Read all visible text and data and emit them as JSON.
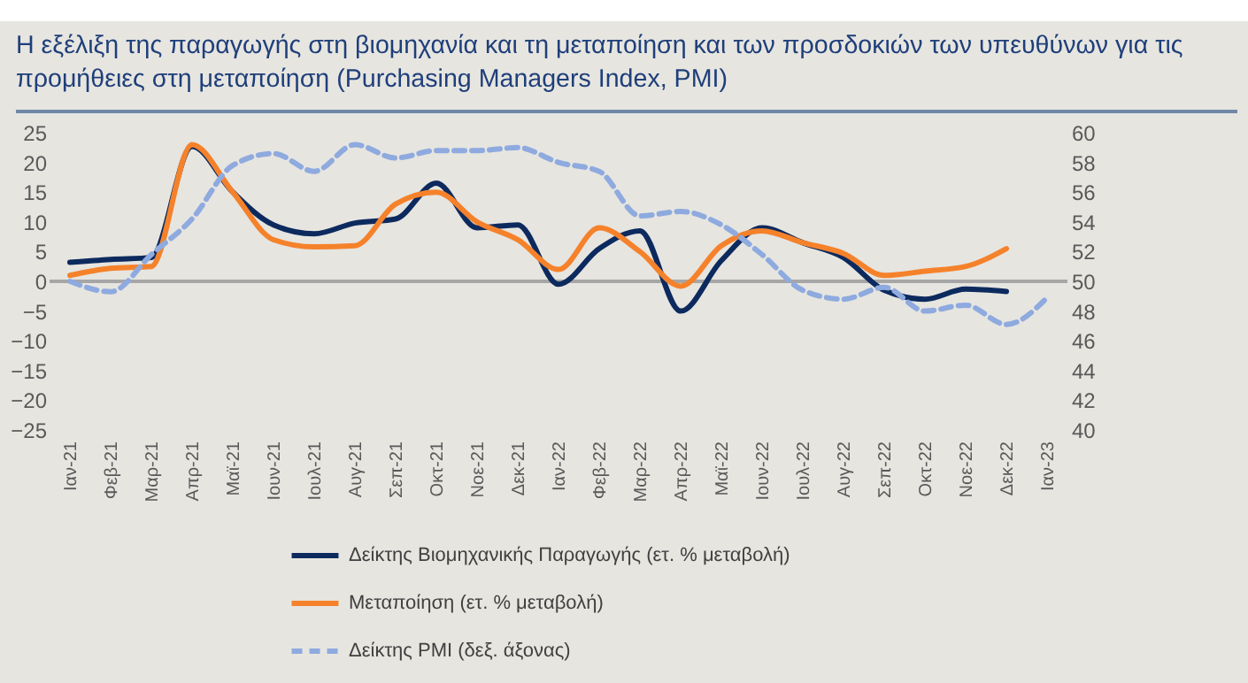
{
  "chart_data": {
    "type": "line",
    "title": "Η εξέλιξη της παραγωγής στη βιομηχανία και τη μεταποίηση και των προσδοκιών των υπευθύνων για τις προμήθειες στη μεταποίηση (Purchasing Managers Index, PMI)",
    "categories": [
      "Ιαν-21",
      "Φεβ-21",
      "Μαρ-21",
      "Απρ-21",
      "Μαϊ-21",
      "Ιουν-21",
      "Ιουλ-21",
      "Αυγ-21",
      "Σεπ-21",
      "Οκτ-21",
      "Νοε-21",
      "Δεκ-21",
      "Ιαν-22",
      "Φεβ-22",
      "Μαρ-22",
      "Απρ-22",
      "Μαϊ-22",
      "Ιουν-22",
      "Ιουλ-22",
      "Αυγ-22",
      "Σεπ-22",
      "Οκτ-22",
      "Νοε-22",
      "Δεκ-22",
      "Ιαν-23"
    ],
    "series": [
      {
        "name": "Δείκτης Βιομηχανικής Παραγωγής (ετ. % μεταβολή)",
        "color": "#0d2a5e",
        "line_style": "solid",
        "values": [
          3.2,
          3.7,
          4,
          22.7,
          15,
          9.5,
          8,
          9.8,
          10.5,
          16.5,
          9,
          9.5,
          -0.5,
          5.5,
          8.5,
          -5,
          3.5,
          9,
          6.5,
          4,
          -1.5,
          -3,
          -1.3,
          -1.7,
          null
        ]
      },
      {
        "name": "Μεταποίηση (ετ. % μεταβολή)",
        "color": "#f5822b",
        "line_style": "solid",
        "values": [
          1,
          2.2,
          2.5,
          23,
          15,
          7,
          5.8,
          6,
          13,
          15,
          10,
          7,
          2,
          9,
          5,
          -0.8,
          6,
          8.5,
          6.5,
          4.7,
          1,
          1.7,
          2.5,
          5.5,
          null
        ]
      },
      {
        "name": "Δείκτης PMI (δεξ. άξονας)",
        "color": "#8eaadf",
        "line_style": "dashed",
        "axis": "y2",
        "values": [
          50,
          49.3,
          51.8,
          54.2,
          57.8,
          58.6,
          57.4,
          59.2,
          58.3,
          58.8,
          58.8,
          59,
          58,
          57.4,
          54.4,
          54.7,
          53.8,
          51.8,
          49.4,
          48.8,
          49.6,
          48,
          48.4,
          47.1,
          48.9
        ]
      }
    ],
    "ylim": [
      -25,
      25
    ],
    "yticks": [
      -25,
      -20,
      -15,
      -10,
      -5,
      0,
      5,
      10,
      15,
      20,
      25
    ],
    "y2lim": [
      40,
      60
    ],
    "y2ticks": [
      40,
      42,
      44,
      46,
      48,
      50,
      52,
      54,
      56,
      58,
      60
    ],
    "ref_lines": [
      {
        "axis": "y",
        "value": 0,
        "color": "#a6a6a6"
      }
    ],
    "grid": false,
    "legend": "bottom",
    "marker": "none"
  }
}
